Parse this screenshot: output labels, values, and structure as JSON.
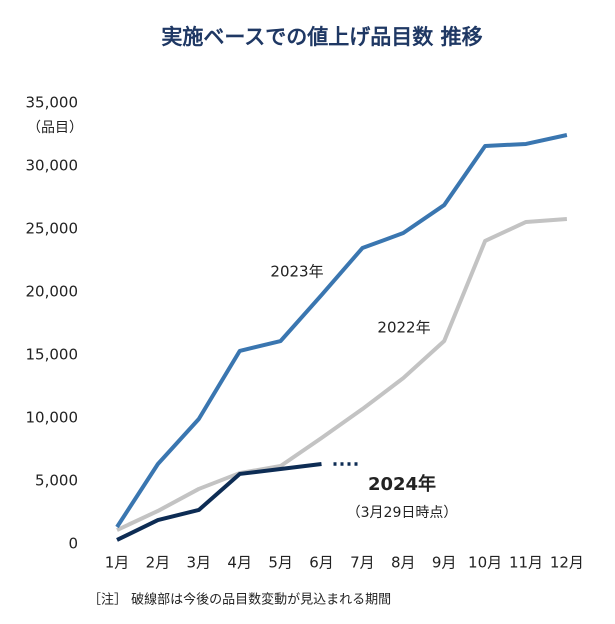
{
  "chart_data": {
    "type": "line",
    "title": "実施ベースでの値上げ品目数 推移",
    "y_label": "（品目）",
    "categories": [
      "1月",
      "2月",
      "3月",
      "4月",
      "5月",
      "6月",
      "7月",
      "8月",
      "9月",
      "10月",
      "11月",
      "12月"
    ],
    "series": [
      {
        "name": "2022年",
        "color": "#c3c3c3",
        "values": [
          1110,
          2620,
          4370,
          5630,
          6190,
          8410,
          10710,
          13170,
          16110,
          24050,
          25560,
          25790
        ]
      },
      {
        "name": "2023年",
        "color": "#3a76b0",
        "values": [
          1350,
          6350,
          9920,
          15320,
          16110,
          19760,
          23490,
          24680,
          26900,
          31590,
          31750,
          32460
        ]
      },
      {
        "name": "2024年",
        "color": "#0d2c54",
        "values": [
          320,
          1900,
          2700,
          5560,
          5950,
          6350,
          null,
          null,
          null,
          null,
          null,
          null
        ]
      }
    ],
    "annotation": "（3月29日時点）",
    "note": "［注］ 破線部は今後の品目数変動が見込まれる期間",
    "ylim": [
      0,
      35000
    ],
    "yticks": [
      0,
      {
        "value": 5000,
        "label": "5,000"
      },
      {
        "value": 10000,
        "label": "10,000"
      },
      {
        "value": 15000,
        "label": "15,000"
      },
      {
        "value": 20000,
        "label": "20,000"
      },
      {
        "value": 25000,
        "label": "25,000"
      },
      {
        "value": 30000,
        "label": "30,000"
      },
      {
        "value": 35000,
        "label": "35,000"
      }
    ]
  }
}
